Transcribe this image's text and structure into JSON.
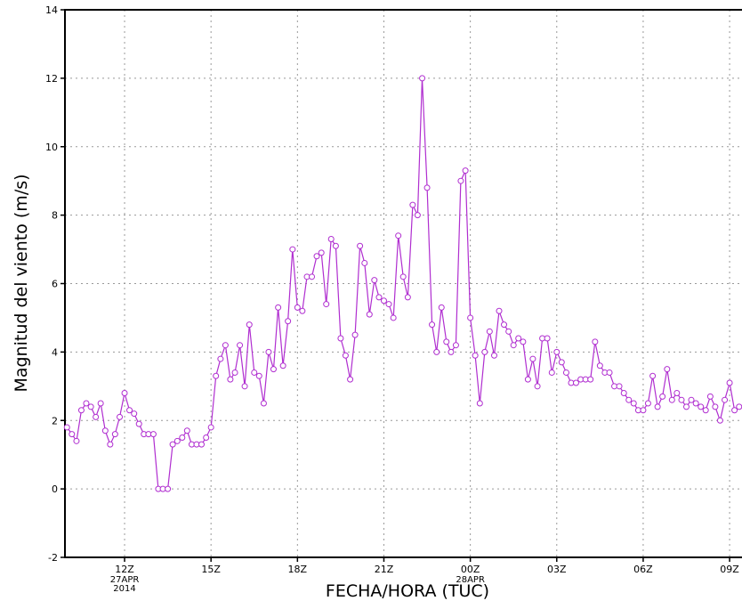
{
  "chart_data": {
    "type": "line",
    "ylabel": "Magnitud del viento (m/s)",
    "xlabel": "FECHA/HORA (TUC)",
    "color": "#b02ed0",
    "grid": true,
    "xlim": [
      9.93,
      33.43
    ],
    "ylim": [
      -2,
      14
    ],
    "yticks": [
      -2,
      0,
      2,
      4,
      6,
      8,
      10,
      12,
      14
    ],
    "xticks": [
      {
        "value": 12,
        "label": "12Z"
      },
      {
        "value": 15,
        "label": "15Z"
      },
      {
        "value": 18,
        "label": "18Z"
      },
      {
        "value": 21,
        "label": "21Z"
      },
      {
        "value": 24,
        "label": "00Z"
      },
      {
        "value": 27,
        "label": "03Z"
      },
      {
        "value": 30,
        "label": "06Z"
      },
      {
        "value": 33,
        "label": "09Z"
      }
    ],
    "date_labels": [
      {
        "value": 12,
        "lines": [
          "27APR",
          "2014"
        ]
      },
      {
        "value": 24,
        "lines": [
          "28APR"
        ]
      }
    ],
    "x": [
      10,
      10.17,
      10.33,
      10.5,
      10.67,
      10.83,
      11,
      11.17,
      11.33,
      11.5,
      11.67,
      11.83,
      12,
      12.17,
      12.33,
      12.5,
      12.67,
      12.83,
      13,
      13.17,
      13.33,
      13.5,
      13.67,
      13.83,
      14,
      14.17,
      14.33,
      14.5,
      14.67,
      14.83,
      15,
      15.17,
      15.33,
      15.5,
      15.67,
      15.83,
      16,
      16.17,
      16.33,
      16.5,
      16.67,
      16.83,
      17,
      17.17,
      17.33,
      17.5,
      17.67,
      17.83,
      18,
      18.17,
      18.33,
      18.5,
      18.67,
      18.83,
      19,
      19.17,
      19.33,
      19.5,
      19.67,
      19.83,
      20,
      20.17,
      20.33,
      20.5,
      20.67,
      20.83,
      21,
      21.17,
      21.33,
      21.5,
      21.67,
      21.83,
      22,
      22.17,
      22.33,
      22.5,
      22.67,
      22.83,
      23,
      23.17,
      23.33,
      23.5,
      23.67,
      23.83,
      24,
      24.17,
      24.33,
      24.5,
      24.67,
      24.83,
      25,
      25.17,
      25.33,
      25.5,
      25.67,
      25.83,
      26,
      26.17,
      26.33,
      26.5,
      26.67,
      26.83,
      27,
      27.17,
      27.33,
      27.5,
      27.67,
      27.83,
      28,
      28.17,
      28.33,
      28.5,
      28.67,
      28.83,
      29,
      29.17,
      29.33,
      29.5,
      29.67,
      29.83,
      30,
      30.17,
      30.33,
      30.5,
      30.67,
      30.83,
      31,
      31.17,
      31.33,
      31.5,
      31.67,
      31.83,
      32,
      32.17,
      32.33,
      32.5,
      32.67,
      32.83,
      33,
      33.17,
      33.33
    ],
    "values": [
      1.8,
      1.6,
      1.4,
      2.3,
      2.5,
      2.4,
      2.1,
      2.5,
      1.7,
      1.3,
      1.6,
      2.1,
      2.8,
      2.3,
      2.2,
      1.9,
      1.6,
      1.6,
      1.6,
      0,
      0,
      0,
      1.3,
      1.4,
      1.5,
      1.7,
      1.3,
      1.3,
      1.3,
      1.5,
      1.8,
      3.3,
      3.8,
      4.2,
      3.2,
      3.4,
      4.2,
      3.0,
      4.8,
      3.4,
      3.3,
      2.5,
      4.0,
      3.5,
      5.3,
      3.6,
      4.9,
      7.0,
      5.3,
      5.2,
      6.2,
      6.2,
      6.8,
      6.9,
      5.4,
      7.3,
      7.1,
      4.4,
      3.9,
      3.2,
      4.5,
      7.1,
      6.6,
      5.1,
      6.1,
      5.6,
      5.5,
      5.4,
      5.0,
      7.4,
      6.2,
      5.6,
      8.3,
      8.0,
      12.0,
      8.8,
      4.8,
      4.0,
      5.3,
      4.3,
      4.0,
      4.2,
      9.0,
      9.3,
      5.0,
      3.9,
      2.5,
      4.0,
      4.6,
      3.9,
      5.2,
      4.8,
      4.6,
      4.2,
      4.4,
      4.3,
      3.2,
      3.8,
      3.0,
      4.4,
      4.4,
      3.4,
      4.0,
      3.7,
      3.4,
      3.1,
      3.1,
      3.2,
      3.2,
      3.2,
      4.3,
      3.6,
      3.4,
      3.4,
      3.0,
      3.0,
      2.8,
      2.6,
      2.5,
      2.3,
      2.3,
      2.5,
      3.3,
      2.4,
      2.7,
      3.5,
      2.6,
      2.8,
      2.6,
      2.4,
      2.6,
      2.5,
      2.4,
      2.3,
      2.7,
      2.4,
      2.0,
      2.6,
      3.1,
      2.3,
      2.4
    ]
  }
}
